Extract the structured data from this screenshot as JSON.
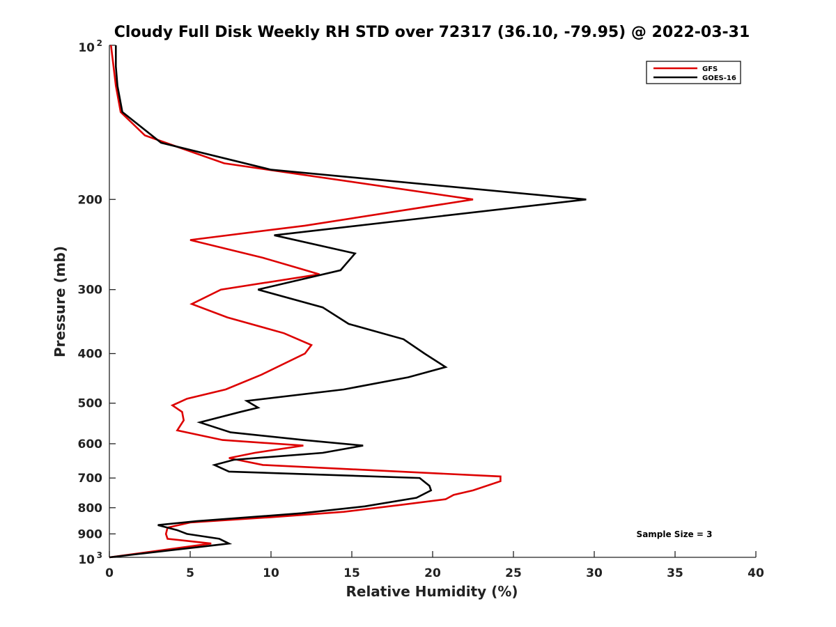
{
  "chart_data": {
    "type": "line",
    "title": "Cloudy Full Disk Weekly RH STD over 72317 (36.10, -79.95) @ 2022-03-31",
    "xlabel": "Relative Humidity (%)",
    "ylabel": "Pressure (mb)",
    "xlim": [
      0,
      40
    ],
    "ylim": [
      100,
      1000
    ],
    "y_scale": "log",
    "y_reversed": true,
    "grid": false,
    "legend_position": "top-right",
    "x_ticks": [
      "0",
      "5",
      "10",
      "15",
      "20",
      "25",
      "30",
      "35",
      "40"
    ],
    "y_ticks": [
      {
        "value": 100,
        "base": "10",
        "exp": "2"
      },
      {
        "value": 200,
        "label": "200"
      },
      {
        "value": 300,
        "label": "300"
      },
      {
        "value": 400,
        "label": "400"
      },
      {
        "value": 500,
        "label": "500"
      },
      {
        "value": 600,
        "label": "600"
      },
      {
        "value": 700,
        "label": "700"
      },
      {
        "value": 800,
        "label": "800"
      },
      {
        "value": 900,
        "label": "900"
      },
      {
        "value": 1000,
        "base": "10",
        "exp": "3"
      }
    ],
    "annotation": "Sample Size = 3",
    "series": [
      {
        "name": "GFS",
        "color": "#dd0000",
        "points": [
          [
            0.1,
            100
          ],
          [
            0.4,
            120
          ],
          [
            0.7,
            135
          ],
          [
            2.2,
            150
          ],
          [
            7.1,
            170
          ],
          [
            22.5,
            200
          ],
          [
            12.1,
            225
          ],
          [
            5.0,
            240
          ],
          [
            9.5,
            260
          ],
          [
            13.0,
            280
          ],
          [
            6.9,
            300
          ],
          [
            5.1,
            320
          ],
          [
            7.3,
            340
          ],
          [
            10.8,
            365
          ],
          [
            12.5,
            385
          ],
          [
            12.1,
            400
          ],
          [
            9.4,
            440
          ],
          [
            7.2,
            470
          ],
          [
            4.8,
            490
          ],
          [
            3.9,
            505
          ],
          [
            4.5,
            520
          ],
          [
            4.6,
            540
          ],
          [
            4.2,
            565
          ],
          [
            7.0,
            590
          ],
          [
            12.0,
            605
          ],
          [
            9.0,
            625
          ],
          [
            7.4,
            640
          ],
          [
            9.5,
            660
          ],
          [
            24.2,
            695
          ],
          [
            24.2,
            710
          ],
          [
            22.5,
            740
          ],
          [
            21.3,
            755
          ],
          [
            20.8,
            770
          ],
          [
            18.0,
            790
          ],
          [
            14.5,
            815
          ],
          [
            10.0,
            835
          ],
          [
            5.0,
            855
          ],
          [
            3.6,
            875
          ],
          [
            3.5,
            900
          ],
          [
            3.6,
            920
          ],
          [
            6.3,
            940
          ],
          [
            0.0,
            1000
          ]
        ]
      },
      {
        "name": "GOES-16",
        "color": "#000000",
        "points": [
          [
            0.4,
            100
          ],
          [
            0.4,
            110
          ],
          [
            0.5,
            120
          ],
          [
            0.8,
            135
          ],
          [
            3.2,
            155
          ],
          [
            10.0,
            175
          ],
          [
            29.5,
            200
          ],
          [
            10.2,
            235
          ],
          [
            15.2,
            255
          ],
          [
            14.3,
            275
          ],
          [
            9.2,
            300
          ],
          [
            13.2,
            325
          ],
          [
            14.8,
            350
          ],
          [
            18.2,
            375
          ],
          [
            19.5,
            400
          ],
          [
            20.8,
            425
          ],
          [
            18.5,
            445
          ],
          [
            14.5,
            470
          ],
          [
            8.5,
            495
          ],
          [
            9.2,
            510
          ],
          [
            8.1,
            520
          ],
          [
            5.6,
            545
          ],
          [
            7.5,
            570
          ],
          [
            12.0,
            590
          ],
          [
            15.7,
            605
          ],
          [
            13.2,
            625
          ],
          [
            7.7,
            645
          ],
          [
            6.5,
            660
          ],
          [
            7.4,
            680
          ],
          [
            19.2,
            700
          ],
          [
            19.8,
            725
          ],
          [
            19.9,
            740
          ],
          [
            19.0,
            765
          ],
          [
            15.8,
            795
          ],
          [
            11.9,
            820
          ],
          [
            5.4,
            850
          ],
          [
            3.0,
            865
          ],
          [
            4.2,
            885
          ],
          [
            4.8,
            900
          ],
          [
            6.8,
            920
          ],
          [
            7.4,
            940
          ],
          [
            5.5,
            955
          ],
          [
            0.0,
            1000
          ]
        ]
      }
    ]
  }
}
